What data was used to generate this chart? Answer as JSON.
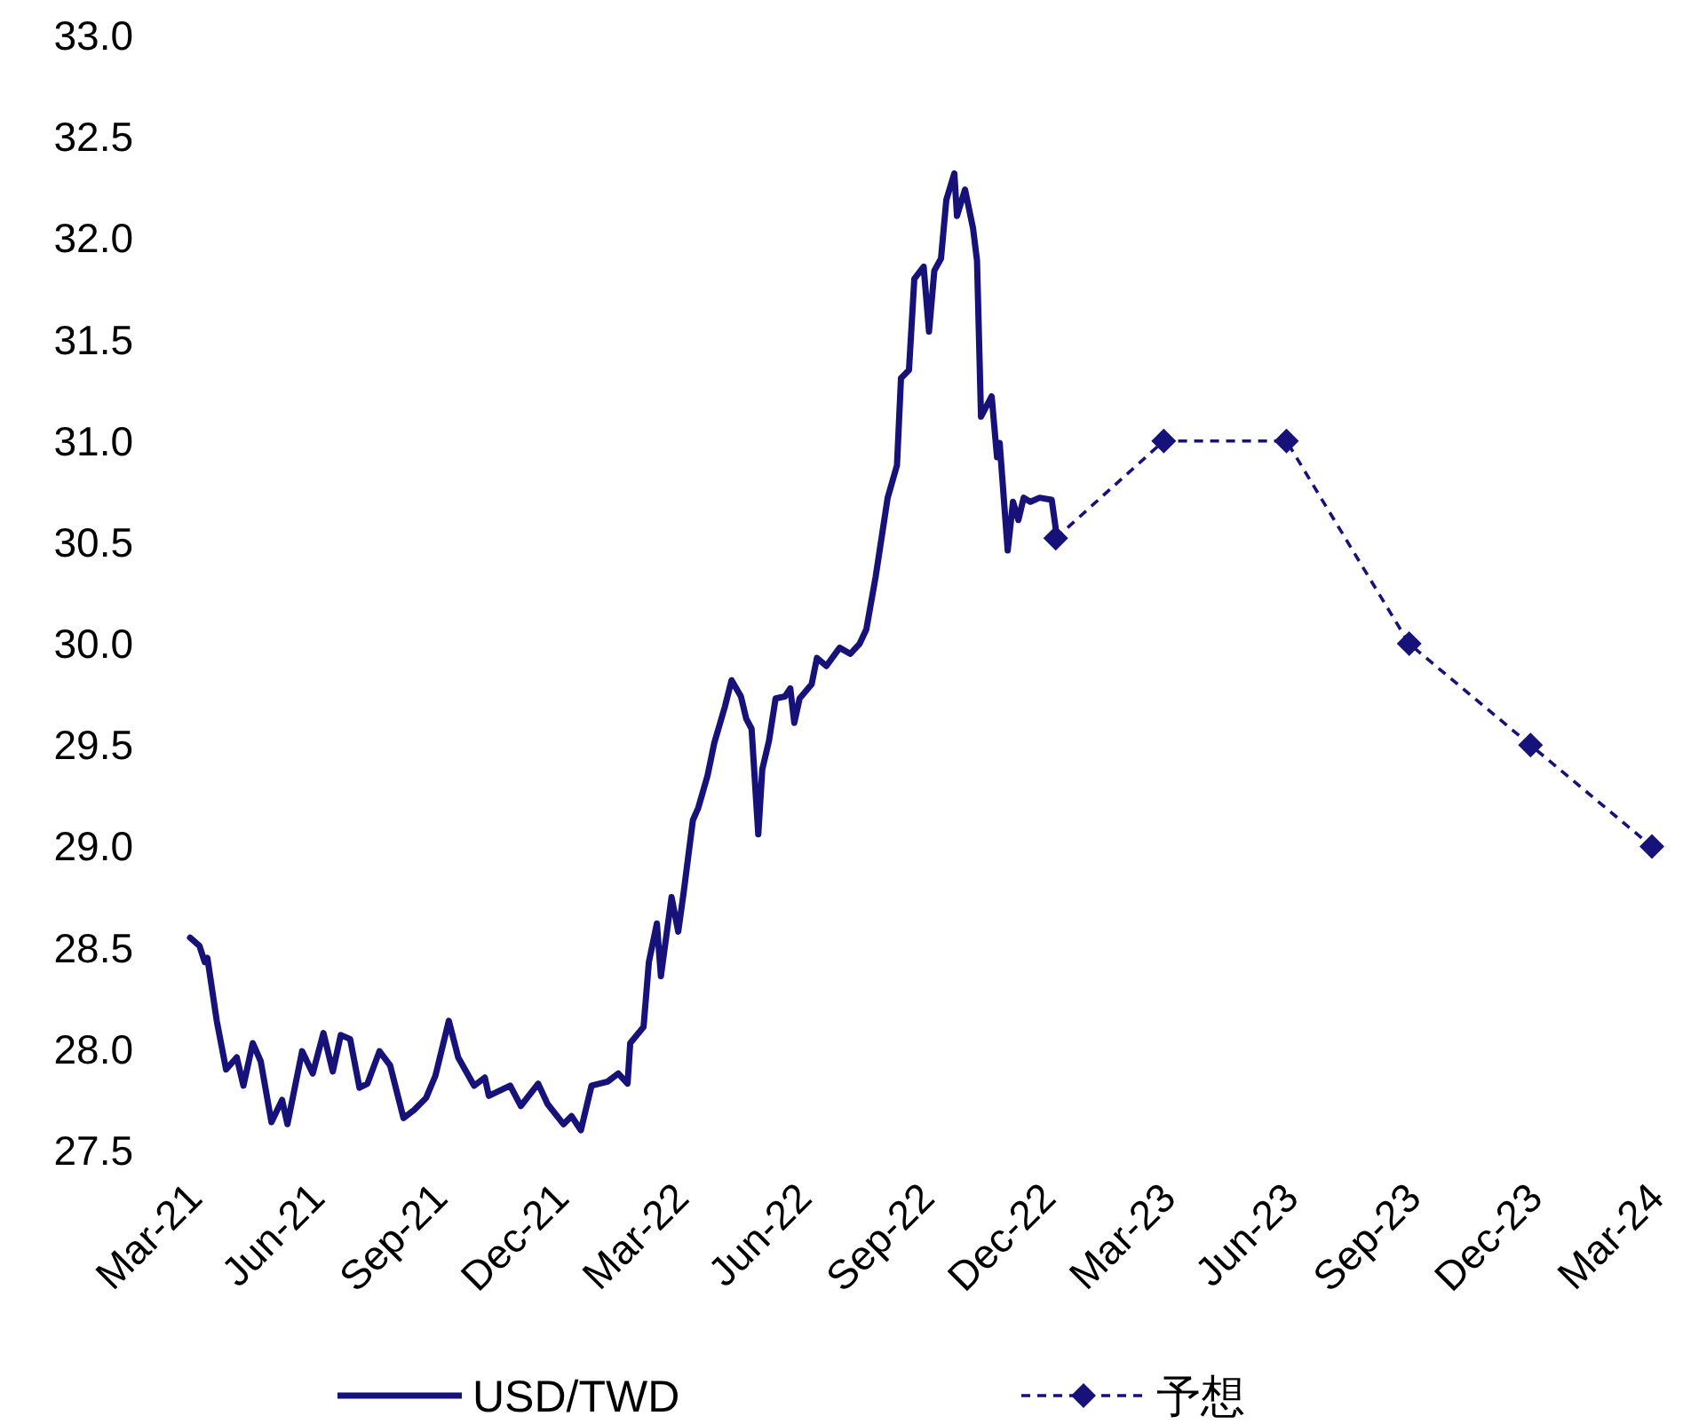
{
  "chart_data": {
    "type": "line",
    "legend": "bottom",
    "xlim": [
      "2021-03-01",
      "2024-03-01"
    ],
    "xticks": [
      {
        "value": "2021-03",
        "label": "Mar-21"
      },
      {
        "value": "2021-06",
        "label": "Jun-21"
      },
      {
        "value": "2021-09",
        "label": "Sep-21"
      },
      {
        "value": "2021-12",
        "label": "Dec-21"
      },
      {
        "value": "2022-03",
        "label": "Mar-22"
      },
      {
        "value": "2022-06",
        "label": "Jun-22"
      },
      {
        "value": "2022-09",
        "label": "Sep-22"
      },
      {
        "value": "2022-12",
        "label": "Dec-22"
      },
      {
        "value": "2023-03",
        "label": "Mar-23"
      },
      {
        "value": "2023-06",
        "label": "Jun-23"
      },
      {
        "value": "2023-09",
        "label": "Sep-23"
      },
      {
        "value": "2023-12",
        "label": "Dec-23"
      },
      {
        "value": "2024-03",
        "label": "Mar-24"
      }
    ],
    "ylim": [
      27.5,
      33.0
    ],
    "yticks": [
      27.5,
      {
        "value": 28,
        "label": "28.0"
      },
      28.5,
      {
        "value": 29,
        "label": "29.0"
      },
      29.5,
      {
        "value": 30,
        "label": "30.0"
      },
      30.5,
      {
        "value": 31,
        "label": "31.0"
      },
      31.5,
      {
        "value": 32,
        "label": "32.0"
      },
      32.5,
      {
        "value": 33,
        "label": "33.0"
      }
    ],
    "series": [
      {
        "name": "USD/TWD",
        "color": "#16127a",
        "line_style": "solid",
        "marker": "none",
        "x": [
          "2021-03-01",
          "2021-03-08",
          "2021-03-12",
          "2021-03-14",
          "2021-03-21",
          "2021-03-28",
          "2021-04-05",
          "2021-04-10",
          "2021-04-17",
          "2021-04-23",
          "2021-05-01",
          "2021-05-09",
          "2021-05-13",
          "2021-05-24",
          "2021-06-01",
          "2021-06-09",
          "2021-06-16",
          "2021-06-22",
          "2021-06-29",
          "2021-07-06",
          "2021-07-12",
          "2021-07-21",
          "2021-07-29",
          "2021-08-08",
          "2021-08-16",
          "2021-08-25",
          "2021-09-01",
          "2021-09-11",
          "2021-09-18",
          "2021-09-30",
          "2021-10-08",
          "2021-10-11",
          "2021-10-27",
          "2021-11-04",
          "2021-11-17",
          "2021-11-24",
          "2021-12-06",
          "2021-12-12",
          "2021-12-19",
          "2021-12-27",
          "2022-01-08",
          "2022-01-16",
          "2022-01-23",
          "2022-01-25",
          "2022-02-04",
          "2022-02-08",
          "2022-02-14",
          "2022-02-17",
          "2022-02-25",
          "2022-03-02",
          "2022-03-06",
          "2022-03-13",
          "2022-03-17",
          "2022-03-24",
          "2022-03-29",
          "2022-04-06",
          "2022-04-11",
          "2022-04-18",
          "2022-04-22",
          "2022-04-26",
          "2022-05-01",
          "2022-05-04",
          "2022-05-09",
          "2022-05-14",
          "2022-05-21",
          "2022-05-25",
          "2022-05-28",
          "2022-06-01",
          "2022-06-10",
          "2022-06-14",
          "2022-06-21",
          "2022-07-01",
          "2022-07-09",
          "2022-07-16",
          "2022-07-21",
          "2022-07-28",
          "2022-08-06",
          "2022-08-13",
          "2022-08-16",
          "2022-08-22",
          "2022-08-26",
          "2022-09-02",
          "2022-09-06",
          "2022-09-10",
          "2022-09-15",
          "2022-09-19",
          "2022-09-25",
          "2022-09-27",
          "2022-10-03",
          "2022-10-09",
          "2022-10-12",
          "2022-10-15",
          "2022-10-23",
          "2022-10-27",
          "2022-10-29",
          "2022-11-04",
          "2022-11-08",
          "2022-11-12",
          "2022-11-16",
          "2022-11-21",
          "2022-11-28",
          "2022-12-07",
          "2022-12-10"
        ],
        "values": [
          28.55,
          28.51,
          28.43,
          28.45,
          28.14,
          27.9,
          27.96,
          27.82,
          28.03,
          27.94,
          27.64,
          27.75,
          27.63,
          27.99,
          27.88,
          28.08,
          27.89,
          28.07,
          28.05,
          27.81,
          27.83,
          27.99,
          27.92,
          27.66,
          27.7,
          27.76,
          27.87,
          28.14,
          27.96,
          27.82,
          27.86,
          27.77,
          27.82,
          27.72,
          27.83,
          27.73,
          27.63,
          27.67,
          27.6,
          27.82,
          27.84,
          27.88,
          27.83,
          28.03,
          28.11,
          28.43,
          28.62,
          28.36,
          28.75,
          28.58,
          28.77,
          29.13,
          29.19,
          29.35,
          29.51,
          29.69,
          29.82,
          29.74,
          29.63,
          29.58,
          29.06,
          29.38,
          29.52,
          29.73,
          29.74,
          29.78,
          29.61,
          29.73,
          29.8,
          29.93,
          29.89,
          29.98,
          29.95,
          30.0,
          30.07,
          30.33,
          30.72,
          30.88,
          31.31,
          31.35,
          31.8,
          31.86,
          31.54,
          31.84,
          31.9,
          32.19,
          32.32,
          32.11,
          32.24,
          32.05,
          31.89,
          31.12,
          31.22,
          30.92,
          30.99,
          30.46,
          30.7,
          30.61,
          30.72,
          30.7,
          30.72,
          30.71,
          30.57
        ]
      },
      {
        "name": "予想",
        "color": "#16127a",
        "line_style": "dashed",
        "marker": "diamond",
        "x": [
          "2022-12-10",
          "2023-03-01",
          "2023-06-01",
          "2023-09-01",
          "2023-12-01",
          "2024-03-01"
        ],
        "values": [
          30.52,
          31.0,
          31.0,
          30.0,
          29.5,
          29.0
        ]
      }
    ]
  }
}
